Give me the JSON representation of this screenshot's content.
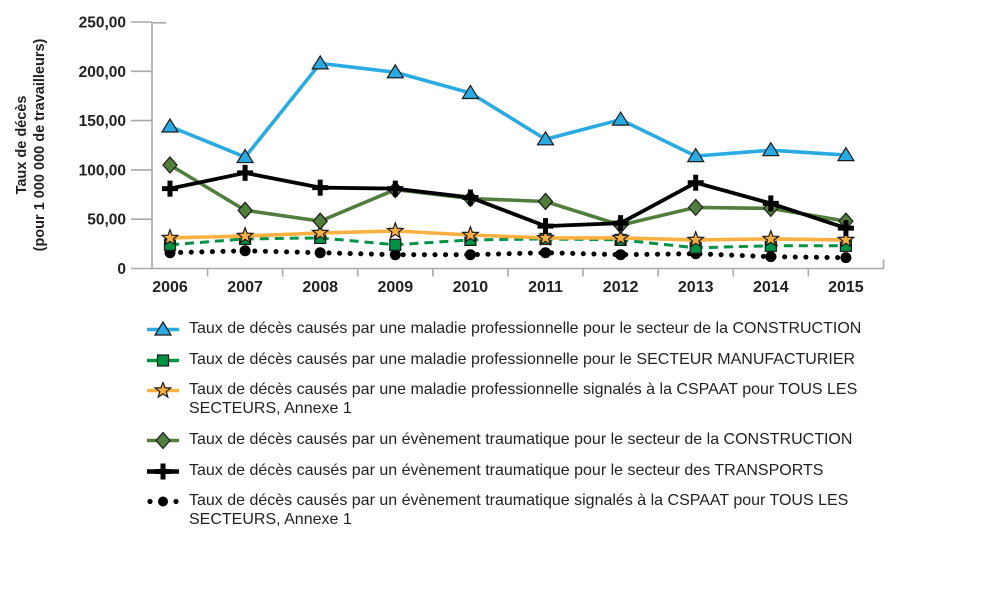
{
  "chart_data": {
    "type": "line",
    "title": "",
    "ylabel_line1": "Taux de décès",
    "ylabel_line2": "(pour 1 000 000 de travailleurs)",
    "xlabel": "",
    "categories": [
      "2006",
      "2007",
      "2008",
      "2009",
      "2010",
      "2011",
      "2012",
      "2013",
      "2014",
      "2015"
    ],
    "ylim": [
      0,
      250
    ],
    "yticks": [
      {
        "value": 250,
        "label": "250,00"
      },
      {
        "value": 200,
        "label": "200,00"
      },
      {
        "value": 150,
        "label": "150,00"
      },
      {
        "value": 100,
        "label": "100,00"
      },
      {
        "value": 50,
        "label": "50,00"
      },
      {
        "value": 0,
        "label": "0"
      }
    ],
    "grid": "off",
    "legend_position": "bottom-left",
    "series": [
      {
        "name": "Taux de décès causés par une maladie professionnelle pour le secteur de la CONSTRUCTION",
        "marker": "triangle",
        "line": "solid",
        "color": "#29abe2",
        "values": [
          144,
          113,
          208,
          199,
          178,
          131,
          151,
          114,
          120,
          115
        ]
      },
      {
        "name": "Taux de décès causés par une maladie professionnelle pour le SECTEUR MANUFACTURIER",
        "marker": "square",
        "line": "dashed",
        "color": "#009245",
        "values": [
          24,
          30,
          31,
          24,
          29,
          30,
          29,
          21,
          23,
          23
        ]
      },
      {
        "name": "Taux de décès causés par une maladie professionnelle signalés à la CSPAAT pour TOUS LES\nSECTEURS, Annexe 1",
        "marker": "star",
        "line": "solid",
        "color": "#fbb040",
        "values": [
          31,
          33,
          36,
          38,
          34,
          31,
          31,
          29,
          30,
          29
        ]
      },
      {
        "name": "Taux de décès causés par un évènement traumatique pour le secteur de la CONSTRUCTION",
        "marker": "diamond",
        "line": "solid",
        "color": "#527e3d",
        "values": [
          105,
          59,
          48,
          80,
          71,
          68,
          44,
          62,
          61,
          48
        ]
      },
      {
        "name": "Taux de décès causés par un évènement traumatique pour le secteur des TRANSPORTS",
        "marker": "plus",
        "line": "solid",
        "color": "#000000",
        "values": [
          81,
          97,
          82,
          81,
          72,
          43,
          46,
          87,
          66,
          41
        ]
      },
      {
        "name": "Taux de décès causés par un évènement traumatique signalés à la CSPAAT pour TOUS LES\nSECTEURS, Annexe 1",
        "marker": "dot",
        "line": "dotted",
        "color": "#000000",
        "values": [
          16,
          18,
          16,
          14,
          14,
          16,
          14,
          15,
          12,
          11
        ]
      }
    ]
  },
  "style": {
    "axis_color": "#a7a9ac",
    "text_color": "#231f20",
    "marker_outline": "#1a1a1a"
  }
}
